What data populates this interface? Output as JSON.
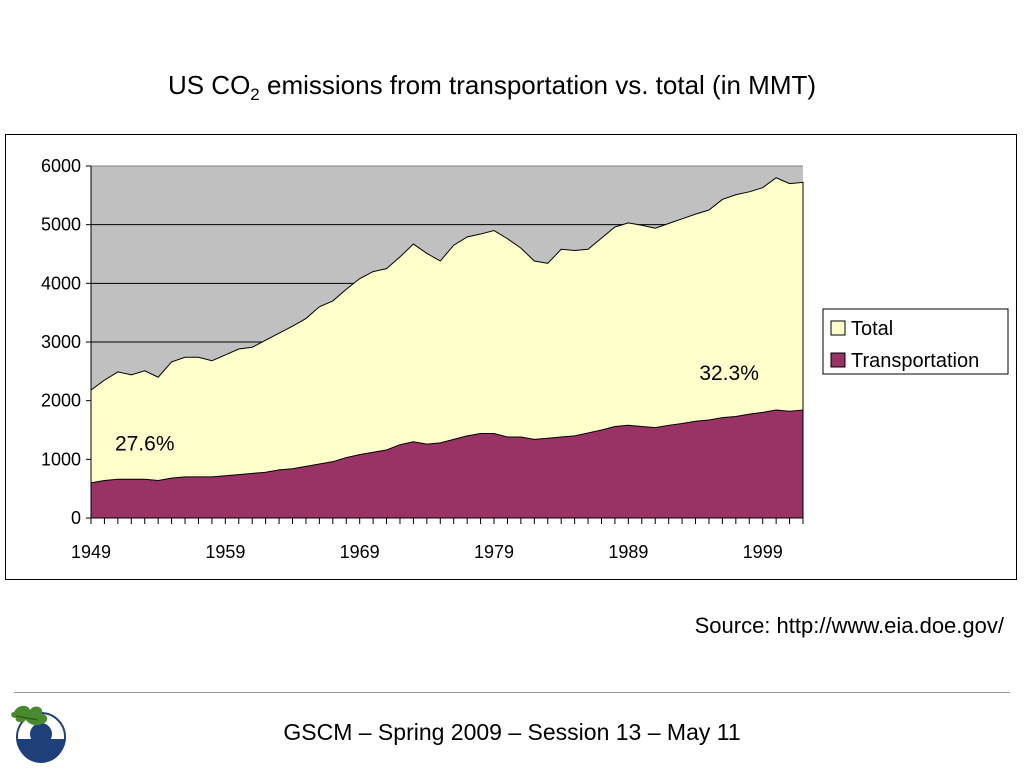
{
  "slide": {
    "title_main": "US CO",
    "title_sub": "2",
    "title_rest": " emissions from transportation vs. total (in MMT)",
    "source": "Source: http://www.eia.doe.gov/",
    "footer": "GSCM – Spring 2009 – Session 13 – May 11",
    "logo_icon": "oak-leaf-globe-icon"
  },
  "chart_data": {
    "type": "area",
    "title": "US CO2 emissions from transportation vs. total (in MMT)",
    "xlabel": "",
    "ylabel": "",
    "x_ticks": [
      1949,
      1959,
      1969,
      1979,
      1989,
      1999
    ],
    "ylim": [
      0,
      6000
    ],
    "y_ticks": [
      0,
      1000,
      2000,
      3000,
      4000,
      5000,
      6000
    ],
    "grid": true,
    "legend_position": "right",
    "plot_background": "#c0c0c0",
    "x": [
      1949,
      1950,
      1951,
      1952,
      1953,
      1954,
      1955,
      1956,
      1957,
      1958,
      1959,
      1960,
      1961,
      1962,
      1963,
      1964,
      1965,
      1966,
      1967,
      1968,
      1969,
      1970,
      1971,
      1972,
      1973,
      1974,
      1975,
      1976,
      1977,
      1978,
      1979,
      1980,
      1981,
      1982,
      1983,
      1984,
      1985,
      1986,
      1987,
      1988,
      1989,
      1990,
      1991,
      1992,
      1993,
      1994,
      1995,
      1996,
      1997,
      1998,
      1999,
      2000,
      2001,
      2002
    ],
    "series": [
      {
        "name": "Total",
        "color": "#ffffcc",
        "values": [
          2180,
          2350,
          2490,
          2440,
          2510,
          2400,
          2660,
          2740,
          2740,
          2680,
          2780,
          2880,
          2910,
          3030,
          3150,
          3270,
          3400,
          3600,
          3700,
          3900,
          4080,
          4200,
          4250,
          4450,
          4670,
          4510,
          4380,
          4650,
          4790,
          4840,
          4900,
          4760,
          4600,
          4380,
          4340,
          4580,
          4560,
          4580,
          4770,
          4960,
          5030,
          4990,
          4940,
          5020,
          5100,
          5180,
          5250,
          5430,
          5510,
          5560,
          5630,
          5800,
          5700,
          5720
        ]
      },
      {
        "name": "Transportation",
        "color": "#993366",
        "values": [
          600,
          640,
          660,
          660,
          660,
          640,
          680,
          700,
          700,
          700,
          720,
          740,
          760,
          780,
          820,
          840,
          880,
          920,
          960,
          1030,
          1080,
          1120,
          1160,
          1250,
          1300,
          1260,
          1280,
          1340,
          1400,
          1440,
          1440,
          1380,
          1380,
          1340,
          1360,
          1380,
          1400,
          1450,
          1500,
          1560,
          1580,
          1560,
          1540,
          1580,
          1610,
          1650,
          1670,
          1710,
          1730,
          1770,
          1800,
          1840,
          1820,
          1840
        ]
      }
    ],
    "annotations": [
      {
        "text": "27.6%",
        "x": 1953,
        "y": 1150
      },
      {
        "text": "32.3%",
        "x": 1996.5,
        "y": 2350
      }
    ]
  }
}
